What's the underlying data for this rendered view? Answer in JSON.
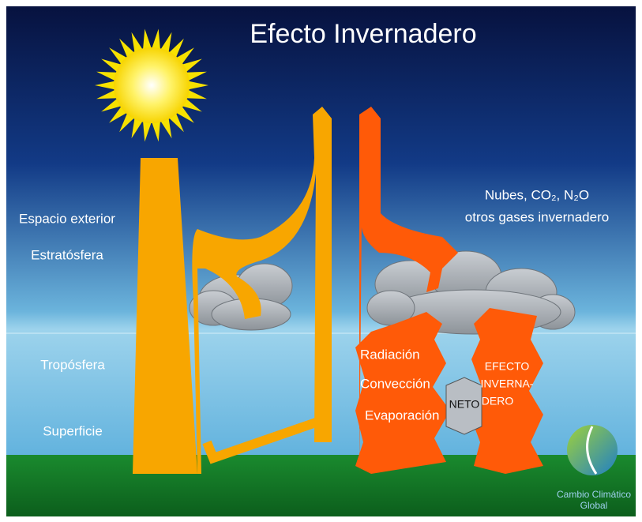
{
  "title": "Efecto Invernadero",
  "layers": [
    "Espacio exterior",
    "Estratósfera",
    "Tropósfera",
    "Superficie"
  ],
  "gases": [
    "Nubes, CO₂, N₂O",
    "otros gases invernadero"
  ],
  "processes": [
    "Radiación",
    "Convección",
    "Evaporación"
  ],
  "neto": "NETO",
  "effect": [
    "EFECTO",
    "INVERNA-",
    "DERO"
  ],
  "logo": [
    "Cambio Climático",
    "Global"
  ]
}
